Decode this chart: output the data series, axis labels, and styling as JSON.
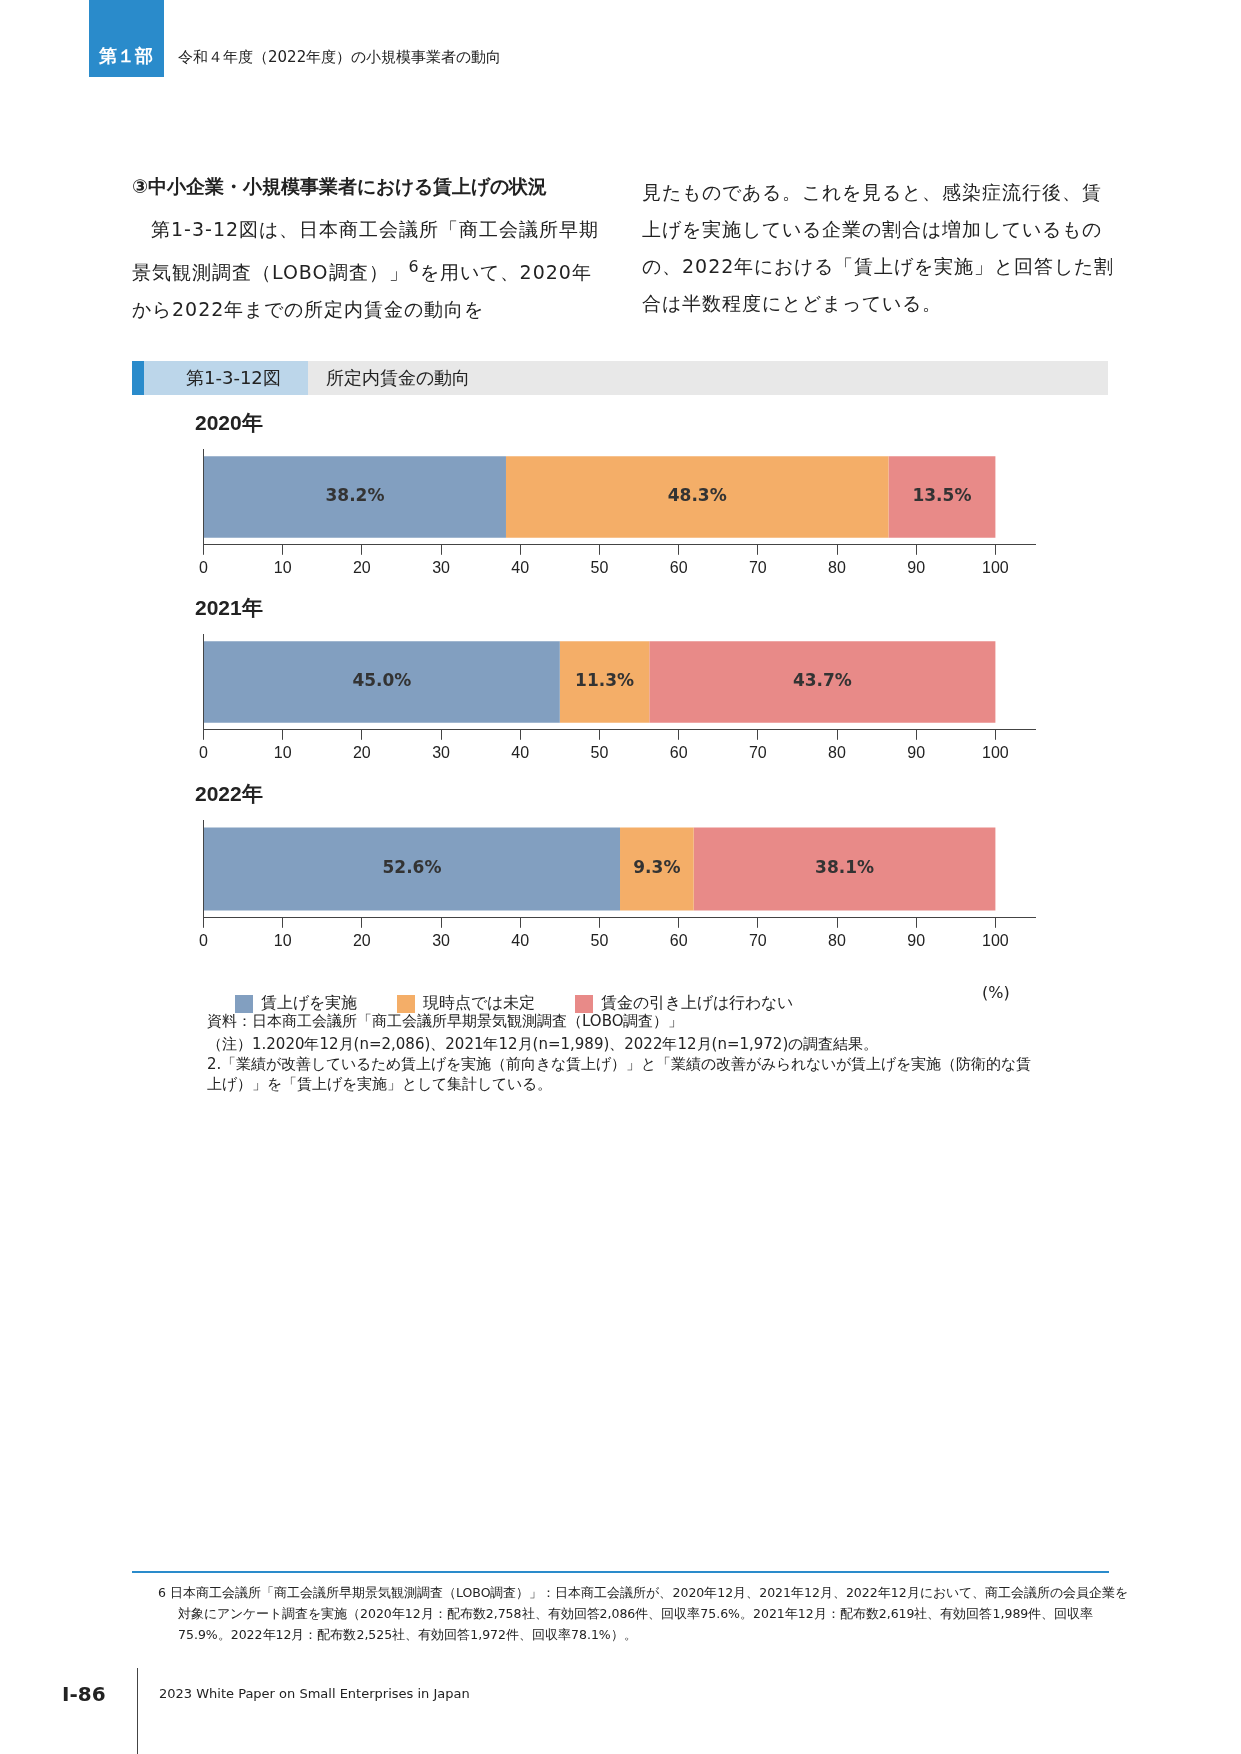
{
  "chart_data": [
    {
      "type": "bar",
      "title": "2020年",
      "orientation": "horizontal",
      "stacked": true,
      "categories": [
        null
      ],
      "xlim": [
        0,
        105
      ],
      "xticks": [
        0,
        10,
        20,
        30,
        40,
        50,
        60,
        70,
        80,
        90,
        100
      ],
      "grid": false,
      "legend": false,
      "series": [
        {
          "color": "#829fc0",
          "values": [
            38.2
          ],
          "value_labels": [
            "38.2%"
          ]
        },
        {
          "color": "#f4ae68",
          "values": [
            48.3
          ],
          "value_labels": [
            "48.3%"
          ]
        },
        {
          "color": "#e88a88",
          "values": [
            13.5
          ],
          "value_labels": [
            "13.5%"
          ]
        }
      ],
      "annotations": [
        "第１部",
        "令和４年度（2022年度）の小規模事業者の動向",
        "③中小企業・小規模事業者における賃上げの状況",
        "第1-3-12図は、日本商工会議所「商工会議所早期景気観測調査（LOBO調査）」$^{6}$を用いて、2020年から2022年までの所定内賃金の動向を",
        "見たものである。これを見ると、感染症流行後、賃上げを実施している企業の割合は増加しているものの、2022年における「賃上げを実施」と回答した割合は半数程度にとどまっている。",
        "第1-3-12図",
        "所定内賃金の動向"
      ]
    },
    {
      "type": "bar",
      "title": "2021年",
      "orientation": "horizontal",
      "stacked": true,
      "categories": [
        null
      ],
      "xlim": [
        0,
        105
      ],
      "xticks": [
        0,
        10,
        20,
        30,
        40,
        50,
        60,
        70,
        80,
        90,
        100
      ],
      "grid": false,
      "legend": false,
      "series": [
        {
          "color": "#829fc0",
          "values": [
            45.0
          ],
          "value_labels": [
            "45.0%"
          ]
        },
        {
          "color": "#f4ae68",
          "values": [
            11.3
          ],
          "value_labels": [
            "11.3%"
          ]
        },
        {
          "color": "#e88a88",
          "values": [
            43.7
          ],
          "value_labels": [
            "43.7%"
          ]
        }
      ]
    },
    {
      "type": "bar",
      "title": "2022年",
      "orientation": "horizontal",
      "stacked": true,
      "categories": [
        null
      ],
      "xlim": [
        0,
        105
      ],
      "xticks": [
        0,
        10,
        20,
        30,
        40,
        50,
        60,
        70,
        80,
        90,
        100
      ],
      "grid": false,
      "legend": "bottom",
      "xlabel": "(%)",
      "series": [
        {
          "name": "賃上げを実施",
          "color": "#829fc0",
          "values": [
            52.6
          ],
          "value_labels": [
            "52.6%"
          ]
        },
        {
          "name": "現時点では未定",
          "color": "#f4ae68",
          "values": [
            9.3
          ],
          "value_labels": [
            "9.3%"
          ]
        },
        {
          "name": "賃金の引き上げは行わない",
          "color": "#e88a88",
          "values": [
            38.1
          ],
          "value_labels": [
            "38.1%"
          ]
        }
      ],
      "annotations": [
        "資料：日本商工会議所「商工会議所早期景気観測調査（LOBO調査）」",
        "（注）1.2020年12月(n=2,086)、2021年12月(n=1,989)、2022年12月(n=1,972)の調査結果。",
        "2.「業績が改善しているため賃上げを実施（前向きな賃上げ）」と「業績の改善がみられないが賃上げを実施（防衛的な賃上げ）」を「賃上げを実施」として集計している。",
        "6 日本商工会議所「商工会議所早期景気観測調査（LOBO調査）」：日本商工会議所が、2020年12月、2021年12月、2022年12月において、商工会議所の会員企業を対象にアンケート調査を実施（2020年12月：配布数2,758社、有効回答2,086件、回収率75.6%。2021年12月：配布数2,619社、有効回答1,989件、回収率75.9%。2022年12月：配布数2,525社、有効回答1,972件、回収率78.1%）。",
        "I-86",
        "2023 White Paper on Small Enterprises in Japan"
      ]
    }
  ]
}
